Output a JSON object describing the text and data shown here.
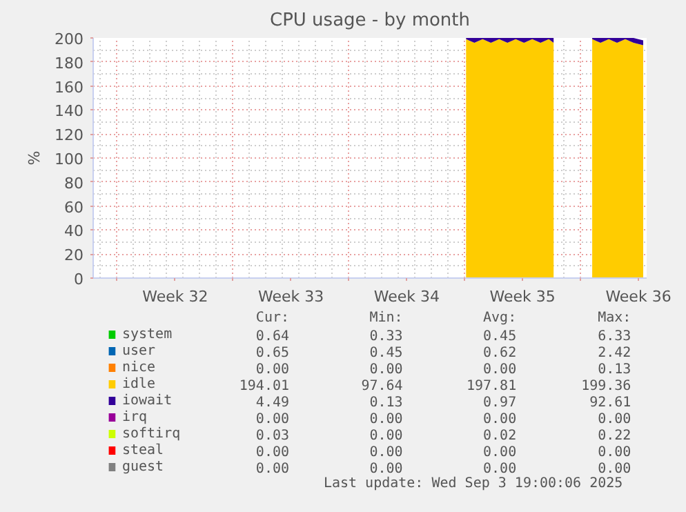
{
  "chart_data": {
    "type": "area",
    "stacked": true,
    "title": "CPU usage - by month",
    "ylabel": "%",
    "x": [
      "2025-08-24T02:00",
      "2025-08-24T14:00",
      "2025-08-25T02:00",
      "2025-08-25T14:00",
      "2025-08-26T02:00",
      "2025-08-26T14:00",
      "2025-08-27T02:00",
      "2025-08-27T14:00",
      "2025-08-28T02:00",
      "2025-08-28T14:00",
      "2025-08-29T02:00",
      "2025-08-29T09:00",
      "2025-08-30T12:00",
      "2025-08-31T17:00",
      "2025-09-01T05:00",
      "2025-09-01T17:00",
      "2025-09-02T05:00",
      "2025-09-02T17:00",
      "2025-09-03T05:00",
      "2025-09-03T19:00"
    ],
    "series": [
      {
        "name": "system",
        "color": "#00cc00",
        "values": [
          null,
          null,
          null,
          null,
          null,
          null,
          null,
          null,
          null,
          null,
          null,
          null,
          null,
          null,
          null,
          null,
          null,
          null,
          null,
          null
        ]
      },
      {
        "name": "user",
        "color": "#0066b3",
        "values": [
          null,
          null,
          null,
          null,
          null,
          null,
          null,
          null,
          null,
          null,
          null,
          null,
          null,
          null,
          null,
          null,
          null,
          null,
          null,
          null
        ]
      },
      {
        "name": "nice",
        "color": "#ff8000",
        "values": [
          null,
          null,
          null,
          null,
          null,
          null,
          null,
          null,
          null,
          null,
          null,
          null,
          null,
          null,
          null,
          null,
          null,
          null,
          null,
          null
        ]
      },
      {
        "name": "idle",
        "color": "#ffcc00",
        "values": [
          199,
          196,
          199,
          196,
          199,
          196,
          199,
          196,
          199,
          196,
          199,
          196,
          null,
          199,
          196,
          199,
          196,
          199,
          196,
          194
        ]
      },
      {
        "name": "iowait",
        "color": "#330099",
        "values": [
          1,
          4,
          1,
          4,
          1,
          4,
          1,
          4,
          1,
          4,
          1,
          4,
          null,
          1,
          4,
          1,
          4,
          1,
          4,
          4
        ]
      },
      {
        "name": "irq",
        "color": "#990099",
        "values": [
          null,
          null,
          null,
          null,
          null,
          null,
          null,
          null,
          null,
          null,
          null,
          null,
          null,
          null,
          null,
          null,
          null,
          null,
          null,
          null
        ]
      },
      {
        "name": "softirq",
        "color": "#ccff00",
        "values": [
          null,
          null,
          null,
          null,
          null,
          null,
          null,
          null,
          null,
          null,
          null,
          null,
          null,
          null,
          null,
          null,
          null,
          null,
          null,
          null
        ]
      },
      {
        "name": "steal",
        "color": "#ff0000",
        "values": [
          null,
          null,
          null,
          null,
          null,
          null,
          null,
          null,
          null,
          null,
          null,
          null,
          null,
          null,
          null,
          null,
          null,
          null,
          null,
          null
        ]
      },
      {
        "name": "guest",
        "color": "#808080",
        "values": [
          null,
          null,
          null,
          null,
          null,
          null,
          null,
          null,
          null,
          null,
          null,
          null,
          null,
          null,
          null,
          null,
          null,
          null,
          null,
          null
        ]
      }
    ],
    "xlim": [
      "2025-08-01T13:00",
      "2025-09-04T00:00"
    ],
    "xticks": [
      {
        "value": "2025-08-03",
        "label": null
      },
      {
        "value": "2025-08-06T12:00",
        "label": "Week 32"
      },
      {
        "value": "2025-08-10",
        "label": null
      },
      {
        "value": "2025-08-13T12:00",
        "label": "Week 33"
      },
      {
        "value": "2025-08-17",
        "label": null
      },
      {
        "value": "2025-08-20T12:00",
        "label": "Week 34"
      },
      {
        "value": "2025-08-24",
        "label": null
      },
      {
        "value": "2025-08-27T12:00",
        "label": "Week 35"
      },
      {
        "value": "2025-08-31",
        "label": null
      },
      {
        "value": "2025-09-03T12:00",
        "label": "Week 36"
      }
    ],
    "ylim": [
      0,
      200
    ],
    "yticks": [
      0,
      20,
      40,
      60,
      80,
      100,
      120,
      140,
      160,
      180,
      200
    ],
    "grid": true,
    "legend": "bottom",
    "annotations": [
      "Cur:",
      "Min:",
      "Avg:",
      "Max:",
      "0.64",
      "0.33",
      "0.45",
      "6.33",
      "0.65",
      "0.45",
      "0.62",
      "2.42",
      "0.00",
      "0.00",
      "0.00",
      "0.13",
      "194.01",
      "97.64",
      "197.81",
      "199.36",
      "4.49",
      "0.13",
      "0.97",
      "92.61",
      "0.00",
      "0.00",
      "0.00",
      "0.00",
      "0.03",
      "0.00",
      "0.02",
      "0.22",
      "0.00",
      "0.00",
      "0.00",
      "0.00",
      "0.00",
      "0.00",
      "0.00",
      "0.00",
      "Last update: Wed Sep  3 19:00:06 2025"
    ]
  }
}
